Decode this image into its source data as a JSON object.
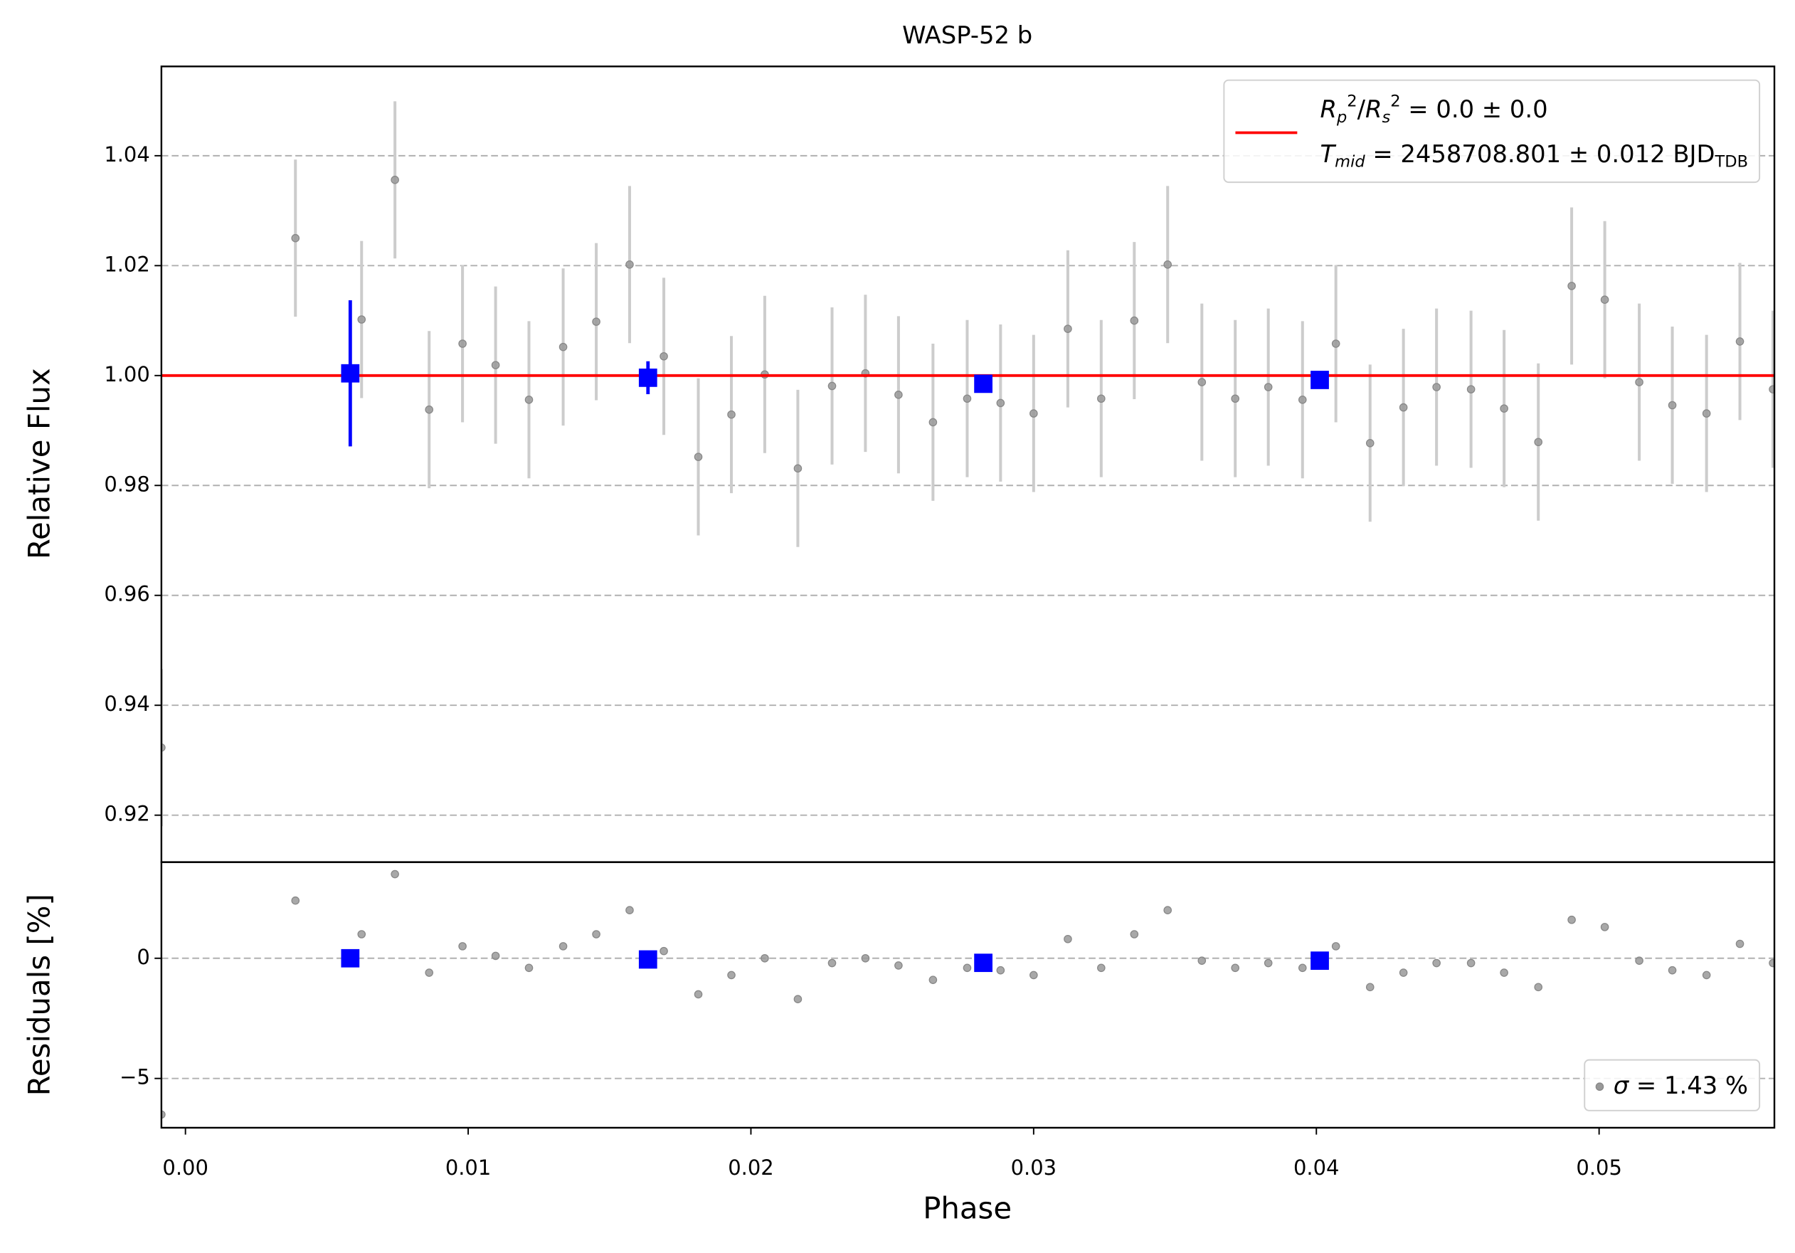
{
  "chart_data": [
    {
      "type": "scatter",
      "title": "WASP-52 b",
      "y_label": "Relative Flux",
      "xlim": [
        -0.00085,
        0.0562
      ],
      "ylim": [
        0.91146,
        1.05625
      ],
      "yticks": [
        0.92,
        0.94,
        0.96,
        0.98,
        {
          "value": 1.0,
          "label": "1.00"
        },
        1.02,
        1.04
      ],
      "grid": true,
      "legend": "upper right",
      "series": [
        {
          "marker": "circle",
          "color": "#999999",
          "error_color": "#cccccc",
          "x": [
            -0.00085,
            0.00389,
            0.00623,
            0.00741,
            0.00862,
            0.0098,
            0.01097,
            0.01215,
            0.01336,
            0.01453,
            0.01571,
            0.01692,
            0.01814,
            0.01931,
            0.02049,
            0.02166,
            0.02287,
            0.02405,
            0.02522,
            0.02644,
            0.02765,
            0.02883,
            0.03,
            0.03121,
            0.03239,
            0.03356,
            0.03474,
            0.03595,
            0.03713,
            0.0383,
            0.03951,
            0.04069,
            0.0419,
            0.04308,
            0.04425,
            0.04547,
            0.04664,
            0.04785,
            0.04903,
            0.0502,
            0.05142,
            0.05259,
            0.0538,
            0.05498,
            0.05615
          ],
          "values": [
            0.9323,
            1.025,
            1.0102,
            1.0356,
            0.9938,
            1.0058,
            1.0019,
            0.9956,
            1.0052,
            1.0098,
            1.0202,
            1.0035,
            0.9852,
            0.9929,
            1.0002,
            0.9831,
            0.9981,
            1.0004,
            0.9965,
            0.9915,
            0.9958,
            0.995,
            0.9931,
            1.0085,
            0.9958,
            1.01,
            1.0202,
            0.9988,
            0.9958,
            0.9979,
            0.9956,
            1.0058,
            0.9877,
            0.9942,
            0.9979,
            0.9975,
            0.994,
            0.9879,
            1.0163,
            1.0138,
            0.9988,
            0.9946,
            0.9931,
            1.0062,
            0.9975
          ],
          "errors": [
            0.0143,
            0.0143,
            0.0143,
            0.0143,
            0.0143,
            0.0143,
            0.0143,
            0.0143,
            0.0143,
            0.0143,
            0.0143,
            0.0143,
            0.0143,
            0.0143,
            0.0143,
            0.0143,
            0.0143,
            0.0143,
            0.0143,
            0.0143,
            0.0143,
            0.0143,
            0.0143,
            0.0143,
            0.0143,
            0.0143,
            0.0143,
            0.0143,
            0.0143,
            0.0143,
            0.0143,
            0.0143,
            0.0143,
            0.0143,
            0.0143,
            0.0143,
            0.0143,
            0.0143,
            0.0143,
            0.0143,
            0.0143,
            0.0143,
            0.0143,
            0.0143,
            0.0143
          ]
        },
        {
          "line": true,
          "color": "#ff0000",
          "name": [
            [
              {
                "text": "R",
                "italic": true
              },
              {
                "text": "p",
                "italic": true,
                "shift": "sub"
              },
              {
                "text": "2",
                "shift": "sup"
              },
              {
                "text": "/"
              },
              {
                "text": "R",
                "italic": true
              },
              {
                "text": "s",
                "italic": true,
                "shift": "sub"
              },
              {
                "text": "2",
                "shift": "sup"
              },
              {
                "text": " = 0.0 ± 0.0"
              }
            ],
            [
              {
                "text": "T",
                "italic": true
              },
              {
                "text": "mid",
                "italic": true,
                "shift": "sub"
              },
              {
                "text": " = 2458708.801 ± 0.012 BJD"
              },
              {
                "text": "TDB",
                "shift": "sub"
              }
            ]
          ],
          "x": [
            -0.00085,
            0.0562
          ],
          "values": [
            1.0,
            1.0
          ]
        },
        {
          "marker": "square",
          "color": "#0000ff",
          "error_color": "#0000ff",
          "x": [
            0.00583,
            0.01636,
            0.02822,
            0.04012
          ],
          "values": [
            1.0004,
            0.9996,
            0.9985,
            0.9992
          ],
          "errors": [
            0.0133,
            0.003,
            0.001,
            0.0015
          ]
        }
      ]
    },
    {
      "type": "scatter",
      "x_label": "Phase",
      "y_label": "Residuals [%]",
      "xlim": [
        -0.00085,
        0.0562
      ],
      "ylim": [
        -7.05,
        4.0
      ],
      "xticks": [
        {
          "value": 0,
          "label": "0.00"
        },
        {
          "value": 0.01,
          "label": "0.01"
        },
        {
          "value": 0.02,
          "label": "0.02"
        },
        {
          "value": 0.03,
          "label": "0.03"
        },
        {
          "value": 0.04,
          "label": "0.04"
        },
        {
          "value": 0.05,
          "label": "0.05"
        }
      ],
      "yticks": [
        {
          "value": -5,
          "label": "−5"
        },
        0
      ],
      "grid": true,
      "legend": "lower right",
      "series": [
        {
          "marker": "circle",
          "color": "#999999",
          "name": [
            [
              {
                "text": "σ",
                "italic": true
              },
              {
                "text": " = 1.43 %"
              }
            ]
          ],
          "x": [
            -0.00085,
            0.00389,
            0.00623,
            0.00741,
            0.00862,
            0.0098,
            0.01097,
            0.01215,
            0.01336,
            0.01453,
            0.01571,
            0.01692,
            0.01814,
            0.01931,
            0.02049,
            0.02166,
            0.02287,
            0.02405,
            0.02522,
            0.02644,
            0.02765,
            0.02883,
            0.03,
            0.03121,
            0.03239,
            0.03356,
            0.03474,
            0.03595,
            0.03713,
            0.0383,
            0.03951,
            0.04069,
            0.0419,
            0.04308,
            0.04425,
            0.04547,
            0.04664,
            0.04785,
            0.04903,
            0.0502,
            0.05142,
            0.05259,
            0.0538,
            0.05498,
            0.05615
          ],
          "values": [
            -6.5,
            2.4,
            1.0,
            3.5,
            -0.6,
            0.5,
            0.1,
            -0.4,
            0.5,
            1.0,
            2.0,
            0.3,
            -1.5,
            -0.7,
            0.0,
            -1.7,
            -0.2,
            0.0,
            -0.3,
            -0.9,
            -0.4,
            -0.5,
            -0.7,
            0.8,
            -0.4,
            1.0,
            2.0,
            -0.1,
            -0.4,
            -0.2,
            -0.4,
            0.5,
            -1.2,
            -0.6,
            -0.2,
            -0.2,
            -0.6,
            -1.2,
            1.6,
            1.3,
            -0.1,
            -0.5,
            -0.7,
            0.6,
            -0.2
          ]
        },
        {
          "marker": "square",
          "color": "#0000ff",
          "x": [
            0.00583,
            0.01636,
            0.02822,
            0.04012
          ],
          "values": [
            0.0,
            -0.05,
            -0.19,
            -0.1
          ]
        }
      ]
    }
  ]
}
